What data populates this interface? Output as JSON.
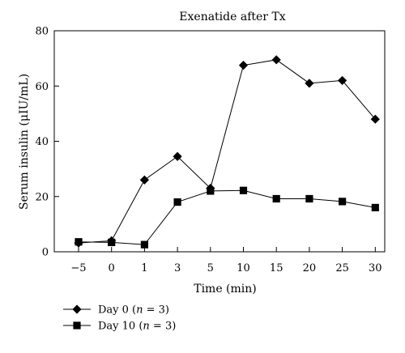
{
  "chart_data": {
    "type": "line",
    "title": "Exenatide after Tx",
    "xlabel": "Time (min)",
    "ylabel": "Serum insulin (μIU/mL)",
    "categories": [
      "−5",
      "0",
      "1",
      "3",
      "5",
      "10",
      "15",
      "20",
      "25",
      "30"
    ],
    "ylim": [
      0,
      80
    ],
    "yticks": [
      0,
      20,
      40,
      60,
      80
    ],
    "grid": false,
    "legend": "bottom-left, below plot",
    "series": [
      {
        "name": "Day 0 (n = 3)",
        "marker": "diamond",
        "legend_parts": [
          "Day 0 (",
          "n",
          " = 3)"
        ],
        "values": [
          3.2,
          4.0,
          26.0,
          34.5,
          23.0,
          67.5,
          69.5,
          61.0,
          62.0,
          48.0
        ]
      },
      {
        "name": "Day 10 (n = 3)",
        "marker": "square",
        "legend_parts": [
          "Day 10 (",
          "n",
          " = 3)"
        ],
        "values": [
          3.6,
          3.4,
          2.6,
          18.0,
          22.0,
          22.2,
          19.2,
          19.2,
          18.2,
          16.0
        ]
      }
    ],
    "colors": {
      "line": "#000000",
      "background": "#ffffff"
    }
  }
}
